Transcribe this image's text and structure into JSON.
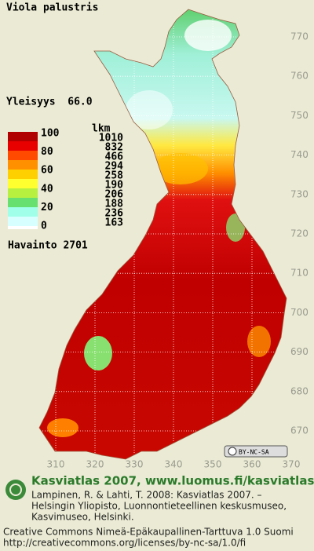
{
  "title": "Viola palustris",
  "summary": "Yleisyys  66.0",
  "legend": {
    "scale_labels": [
      100,
      80,
      60,
      40,
      20,
      0
    ],
    "count_header": "lkm",
    "counts": [
      1010,
      832,
      466,
      294,
      258,
      190,
      206,
      188,
      236,
      163
    ],
    "colors": [
      "#b00000",
      "#e80000",
      "#ff4a00",
      "#ff9000",
      "#ffd000",
      "#ffff30",
      "#b8f040",
      "#68e070",
      "#a0ffe8",
      "#d8ffff"
    ],
    "observations": "Havainto 2701"
  },
  "axes": {
    "y_ticks": [
      770,
      760,
      750,
      740,
      730,
      720,
      710,
      700,
      690,
      680,
      670
    ],
    "x_ticks": [
      310,
      320,
      330,
      340,
      350,
      360,
      370
    ]
  },
  "license_badge": "BY-NC-SA",
  "footer": {
    "heading": "Kasviatlas 2007, www.luomus.fi/kasviatlas",
    "citation": [
      "Lampinen, R. & Lahti, T. 2008: Kasviatlas 2007. –",
      "Helsingin Yliopisto, Luonnontieteellinen keskusmuseo,",
      "Kasvimuseo, Helsinki."
    ],
    "license": [
      "Creative Commons Nimeä-Epäkaupallinen-Tarttuva 1.0 Suomi",
      "http://creativecommons.org/licenses/by-nc-sa/1.0/fi"
    ]
  }
}
